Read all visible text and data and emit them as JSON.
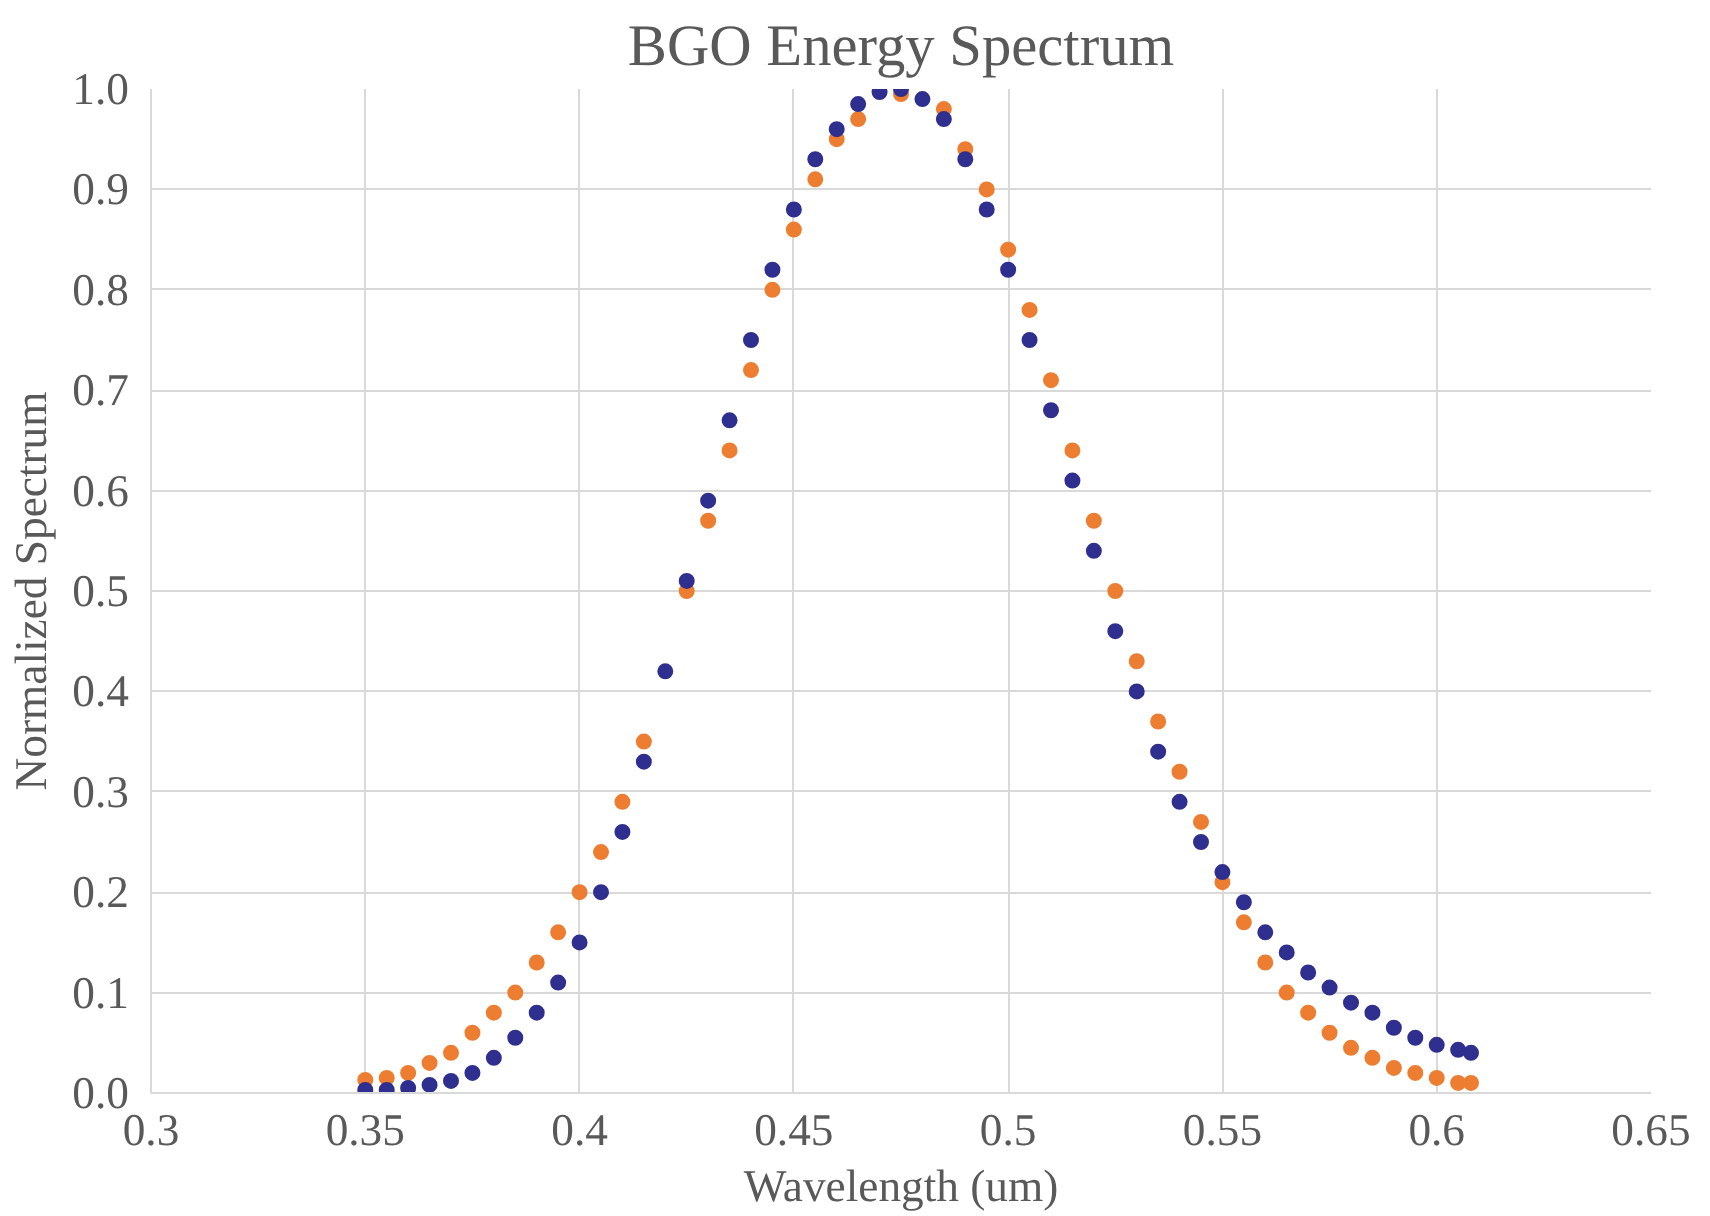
{
  "chart_data": {
    "type": "scatter",
    "title": "BGO Energy Spectrum",
    "xlabel": "Wavelength (um)",
    "ylabel": "Normalized Spectrum",
    "xlim": [
      0.3,
      0.65
    ],
    "ylim": [
      0,
      1
    ],
    "xticks": [
      0.3,
      0.35,
      0.4,
      0.45,
      0.5,
      0.55,
      0.6,
      0.65
    ],
    "yticks": [
      {
        "value": 0,
        "label": "0.0"
      },
      0.1,
      0.2,
      0.3,
      0.4,
      0.5,
      0.6,
      0.7,
      0.8,
      0.9,
      {
        "value": 1,
        "label": "1.0"
      }
    ],
    "grid": true,
    "marker": "circle",
    "x": [
      0.35,
      0.355,
      0.36,
      0.365,
      0.37,
      0.375,
      0.38,
      0.385,
      0.39,
      0.395,
      0.4,
      0.405,
      0.41,
      0.415,
      0.42,
      0.425,
      0.43,
      0.435,
      0.44,
      0.445,
      0.45,
      0.455,
      0.46,
      0.465,
      0.47,
      0.475,
      0.48,
      0.485,
      0.49,
      0.495,
      0.5,
      0.505,
      0.51,
      0.515,
      0.52,
      0.525,
      0.53,
      0.535,
      0.54,
      0.545,
      0.55,
      0.555,
      0.56,
      0.565,
      0.57,
      0.575,
      0.58,
      0.585,
      0.59,
      0.595,
      0.6,
      0.605,
      0.608
    ],
    "series": [
      {
        "color": "#ed7d31",
        "values": [
          0.013,
          0.015,
          0.02,
          0.03,
          0.04,
          0.06,
          0.08,
          0.1,
          0.13,
          0.16,
          0.2,
          0.24,
          0.29,
          0.35,
          null,
          0.5,
          0.57,
          0.64,
          0.72,
          0.8,
          0.86,
          0.91,
          0.95,
          0.97,
          null,
          0.995,
          null,
          0.98,
          0.94,
          0.9,
          0.84,
          0.78,
          0.71,
          0.64,
          0.57,
          0.5,
          0.43,
          0.37,
          0.32,
          0.27,
          0.21,
          0.17,
          0.13,
          0.1,
          0.08,
          0.06,
          0.045,
          0.035,
          0.025,
          0.02,
          0.015,
          0.01,
          0.01
        ]
      },
      {
        "color": "#2e2f8f",
        "values": [
          0.003,
          0.003,
          0.005,
          0.008,
          0.012,
          0.02,
          0.035,
          0.055,
          0.08,
          0.11,
          0.15,
          0.2,
          0.26,
          0.33,
          0.42,
          0.51,
          0.59,
          0.67,
          0.75,
          0.82,
          0.88,
          0.93,
          0.96,
          0.985,
          0.997,
          1.0,
          0.99,
          0.97,
          0.93,
          0.88,
          0.82,
          0.75,
          0.68,
          0.61,
          0.54,
          0.46,
          0.4,
          0.34,
          0.29,
          0.25,
          0.22,
          0.19,
          0.16,
          0.14,
          0.12,
          0.105,
          0.09,
          0.08,
          0.065,
          0.055,
          0.048,
          0.043,
          0.04
        ]
      }
    ]
  }
}
